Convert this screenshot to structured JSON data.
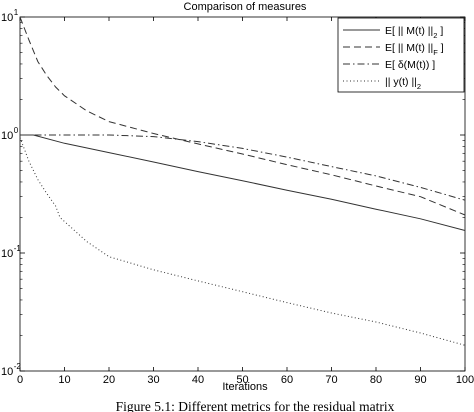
{
  "chart_data": {
    "type": "line",
    "title": "Comparison of measures",
    "xlabel": "Iterations",
    "ylabel": "",
    "xlim": [
      0,
      100
    ],
    "ylim": [
      0.01,
      10
    ],
    "yscale": "log",
    "grid": false,
    "legend_position": "top-right",
    "x_ticks": [
      0,
      10,
      20,
      30,
      40,
      50,
      60,
      70,
      80,
      90,
      100
    ],
    "y_ticks": [
      {
        "value": 0.01,
        "base": "10",
        "exp": "-2"
      },
      {
        "value": 0.1,
        "base": "10",
        "exp": "-1"
      },
      {
        "value": 1,
        "base": "10",
        "exp": "0"
      },
      {
        "value": 10,
        "base": "10",
        "exp": "1"
      }
    ],
    "series": [
      {
        "name": "E[ || M(t) ||2 ]",
        "legend_main": "E[ || M(t) ||",
        "legend_sub": "2",
        "legend_tail": " ]",
        "style": "solid",
        "x": [
          0,
          3,
          10,
          20,
          30,
          40,
          50,
          60,
          70,
          80,
          90,
          100
        ],
        "y": [
          1.0,
          1.0,
          0.85,
          0.71,
          0.59,
          0.49,
          0.41,
          0.34,
          0.285,
          0.235,
          0.195,
          0.155
        ]
      },
      {
        "name": "E[ || M(t) ||F ]",
        "legend_main": "E[ || M(t) ||",
        "legend_sub": "F",
        "legend_tail": " ]",
        "style": "dashed",
        "x": [
          0,
          2,
          4,
          6,
          8,
          10,
          15,
          20,
          30,
          40,
          50,
          60,
          70,
          80,
          90,
          100
        ],
        "y": [
          10,
          6.4,
          4.2,
          3.2,
          2.55,
          2.15,
          1.6,
          1.3,
          1.03,
          0.84,
          0.69,
          0.56,
          0.46,
          0.37,
          0.3,
          0.21
        ]
      },
      {
        "name": "E[ δ(M(t)) ]",
        "legend_main": "E[ δ(M(t)) ]",
        "legend_sub": "",
        "legend_tail": "",
        "style": "dashdot",
        "x": [
          0,
          10,
          20,
          30,
          40,
          50,
          60,
          70,
          80,
          90,
          100
        ],
        "y": [
          1.0,
          1.0,
          1.0,
          0.97,
          0.88,
          0.77,
          0.65,
          0.54,
          0.45,
          0.36,
          0.28
        ]
      },
      {
        "name": "|| y(t) ||2",
        "legend_main": "|| y(t) ||",
        "legend_sub": "2",
        "legend_tail": "",
        "style": "dotted",
        "x": [
          0,
          2,
          4,
          6,
          8,
          9,
          10,
          15,
          20,
          30,
          40,
          50,
          60,
          70,
          80,
          90,
          100
        ],
        "y": [
          0.95,
          0.6,
          0.42,
          0.32,
          0.25,
          0.2,
          0.185,
          0.125,
          0.093,
          0.072,
          0.058,
          0.047,
          0.038,
          0.031,
          0.026,
          0.021,
          0.0165
        ]
      }
    ]
  },
  "caption": "Figure 5.1: Different metrics for the residual matrix"
}
